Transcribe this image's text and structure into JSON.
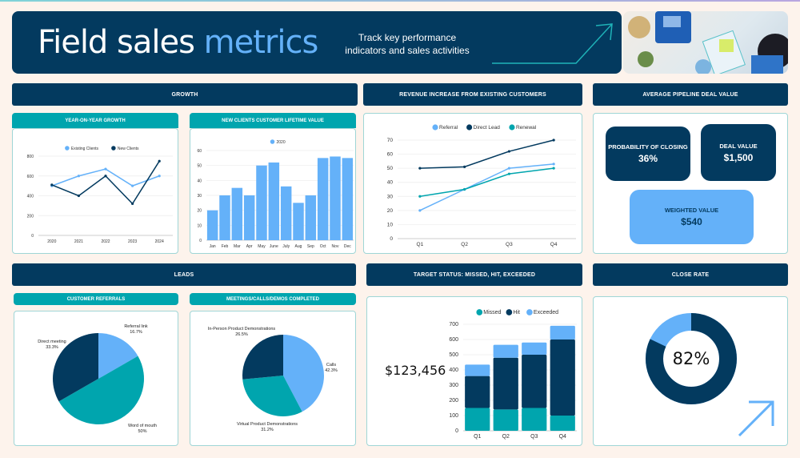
{
  "header": {
    "title_a": "Field sales",
    "title_b": "metrics",
    "subtitle": "Track key performance indicators and sales activities"
  },
  "colors": {
    "navy": "#033a5f",
    "teal": "#00a5ae",
    "light_blue": "#64b1f9",
    "background": "#fdf3ec"
  },
  "sections": {
    "growth": "GROWTH",
    "revenue": "REVENUE INCREASE FROM EXISTING CUSTOMERS",
    "pipeline": "AVERAGE PIPELINE DEAL VALUE",
    "leads": "LEADS",
    "target": "TARGET STATUS: MISSED, HIT, EXCEEDED",
    "close": "CLOSE RATE"
  },
  "subsections": {
    "yoy": "YEAR-ON-YEAR GROWTH",
    "ltv": "NEW CLIENTS CUSTOMER LIFETIME VALUE",
    "referrals": "CUSTOMER REFERRALS",
    "meetings": "MEETINGS/CALLS/DEMOS COMPLETED"
  },
  "pipeline": {
    "prob_label": "PROBABILITY OF CLOSING",
    "prob_value": "36%",
    "deal_label": "DEAL VALUE",
    "deal_value": "$1,500",
    "weighted_label": "WEIGHTED VALUE",
    "weighted_value": "$540"
  },
  "target_total": "$123,456",
  "close_rate": {
    "value": 82,
    "label": "82%"
  },
  "chart_data": [
    {
      "id": "yoy",
      "type": "line",
      "categories": [
        "2020",
        "2021",
        "2022",
        "2023",
        "2024"
      ],
      "ylim": [
        0,
        800
      ],
      "yticks": [
        0,
        200,
        400,
        600,
        800
      ],
      "legend": "top",
      "grid": true,
      "series": [
        {
          "name": "Existing Clients",
          "color": "#64b1f9",
          "values": [
            500,
            600,
            670,
            500,
            600
          ]
        },
        {
          "name": "New Clients",
          "color": "#033a5f",
          "values": [
            510,
            400,
            600,
            320,
            750
          ]
        }
      ]
    },
    {
      "id": "ltv",
      "type": "bar",
      "categories": [
        "Jan",
        "Feb",
        "Mar",
        "Apr",
        "May",
        "June",
        "July",
        "Aug",
        "Sep",
        "Oct",
        "Nov",
        "Dec"
      ],
      "ylim": [
        0,
        60
      ],
      "yticks": [
        0,
        10,
        20,
        30,
        40,
        50,
        60
      ],
      "legend": "top",
      "grid": true,
      "series": [
        {
          "name": "2020",
          "color": "#64b1f9",
          "values": [
            20,
            30,
            35,
            30,
            50,
            52,
            36,
            25,
            30,
            55,
            56,
            55
          ]
        }
      ]
    },
    {
      "id": "revenue",
      "type": "line",
      "categories": [
        "Q1",
        "Q2",
        "Q3",
        "Q4"
      ],
      "ylim": [
        0,
        70
      ],
      "yticks": [
        0,
        10,
        20,
        30,
        40,
        50,
        60,
        70
      ],
      "legend": "top",
      "grid": true,
      "series": [
        {
          "name": "Referral",
          "color": "#64b1f9",
          "values": [
            20,
            35,
            50,
            53
          ]
        },
        {
          "name": "Direct Lead",
          "color": "#033a5f",
          "values": [
            50,
            51,
            62,
            70
          ]
        },
        {
          "name": "Renewal",
          "color": "#00a5ae",
          "values": [
            30,
            35,
            46,
            50
          ]
        }
      ]
    },
    {
      "id": "target",
      "type": "bar",
      "stacked": true,
      "categories": [
        "Q1",
        "Q2",
        "Q3",
        "Q4"
      ],
      "ylim": [
        0,
        700
      ],
      "yticks": [
        0,
        100,
        200,
        300,
        400,
        500,
        600,
        700
      ],
      "legend": "top",
      "grid": true,
      "series": [
        {
          "name": "Missed",
          "color": "#00a5ae",
          "values": [
            150,
            140,
            150,
            100
          ]
        },
        {
          "name": "Hit",
          "color": "#033a5f",
          "values": [
            210,
            340,
            350,
            500
          ]
        },
        {
          "name": "Exceeded",
          "color": "#64b1f9",
          "values": [
            75,
            85,
            80,
            90
          ]
        }
      ]
    },
    {
      "id": "referrals",
      "type": "pie",
      "slices": [
        {
          "label": "Referral link",
          "value": 16.7,
          "text": "16.7%",
          "color": "#64b1f9"
        },
        {
          "label": "Word of mouth",
          "value": 50,
          "text": "50%",
          "color": "#00a5ae"
        },
        {
          "label": "Direct meeting",
          "value": 33.3,
          "text": "33.3%",
          "color": "#033a5f"
        }
      ]
    },
    {
      "id": "meetings",
      "type": "pie",
      "slices": [
        {
          "label": "Calls",
          "value": 42.3,
          "text": "42.3%",
          "color": "#64b1f9"
        },
        {
          "label": "Virtual Product Demonstrations",
          "value": 31.2,
          "text": "31.2%",
          "color": "#00a5ae"
        },
        {
          "label": "In-Person Product Demonstrations",
          "value": 26.5,
          "text": "26.5%",
          "color": "#033a5f"
        }
      ]
    }
  ]
}
